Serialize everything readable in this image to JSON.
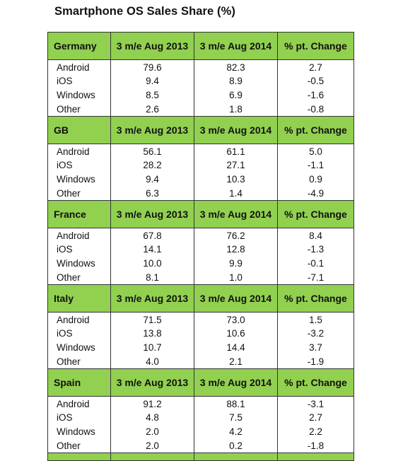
{
  "title": "Smartphone OS Sales Share (%)",
  "chart_data": {
    "type": "table",
    "title": "Smartphone OS Sales Share (%)",
    "columns": [
      "3 m/e Aug 2013",
      "3 m/e Aug 2014",
      "% pt. Change"
    ],
    "groups": [
      {
        "country": "Germany",
        "rows": [
          {
            "os": "Android",
            "values": [
              "79.6",
              "82.3",
              "2.7"
            ]
          },
          {
            "os": "iOS",
            "values": [
              "9.4",
              "8.9",
              "-0.5"
            ]
          },
          {
            "os": "Windows",
            "values": [
              "8.5",
              "6.9",
              "-1.6"
            ]
          },
          {
            "os": "Other",
            "values": [
              "2.6",
              "1.8",
              "-0.8"
            ]
          }
        ]
      },
      {
        "country": "GB",
        "rows": [
          {
            "os": "Android",
            "values": [
              "56.1",
              "61.1",
              "5.0"
            ]
          },
          {
            "os": "iOS",
            "values": [
              "28.2",
              "27.1",
              "-1.1"
            ]
          },
          {
            "os": "Windows",
            "values": [
              "9.4",
              "10.3",
              "0.9"
            ]
          },
          {
            "os": "Other",
            "values": [
              "6.3",
              "1.4",
              "-4.9"
            ]
          }
        ]
      },
      {
        "country": "France",
        "rows": [
          {
            "os": "Android",
            "values": [
              "67.8",
              "76.2",
              "8.4"
            ]
          },
          {
            "os": "iOS",
            "values": [
              "14.1",
              "12.8",
              "-1.3"
            ]
          },
          {
            "os": "Windows",
            "values": [
              "10.0",
              "9.9",
              "-0.1"
            ]
          },
          {
            "os": "Other",
            "values": [
              "8.1",
              "1.0",
              "-7.1"
            ]
          }
        ]
      },
      {
        "country": "Italy",
        "rows": [
          {
            "os": "Android",
            "values": [
              "71.5",
              "73.0",
              "1.5"
            ]
          },
          {
            "os": "iOS",
            "values": [
              "13.8",
              "10.6",
              "-3.2"
            ]
          },
          {
            "os": "Windows",
            "values": [
              "10.7",
              "14.4",
              "3.7"
            ]
          },
          {
            "os": "Other",
            "values": [
              "4.0",
              "2.1",
              "-1.9"
            ]
          }
        ]
      },
      {
        "country": "Spain",
        "rows": [
          {
            "os": "Android",
            "values": [
              "91.2",
              "88.1",
              "-3.1"
            ]
          },
          {
            "os": "iOS",
            "values": [
              "4.8",
              "7.5",
              "2.7"
            ]
          },
          {
            "os": "Windows",
            "values": [
              "2.0",
              "4.2",
              "2.2"
            ]
          },
          {
            "os": "Other",
            "values": [
              "2.0",
              "0.2",
              "-1.8"
            ]
          }
        ]
      }
    ]
  },
  "colors": {
    "header_fill": "#92d050",
    "border": "#333333",
    "text": "#111111"
  }
}
